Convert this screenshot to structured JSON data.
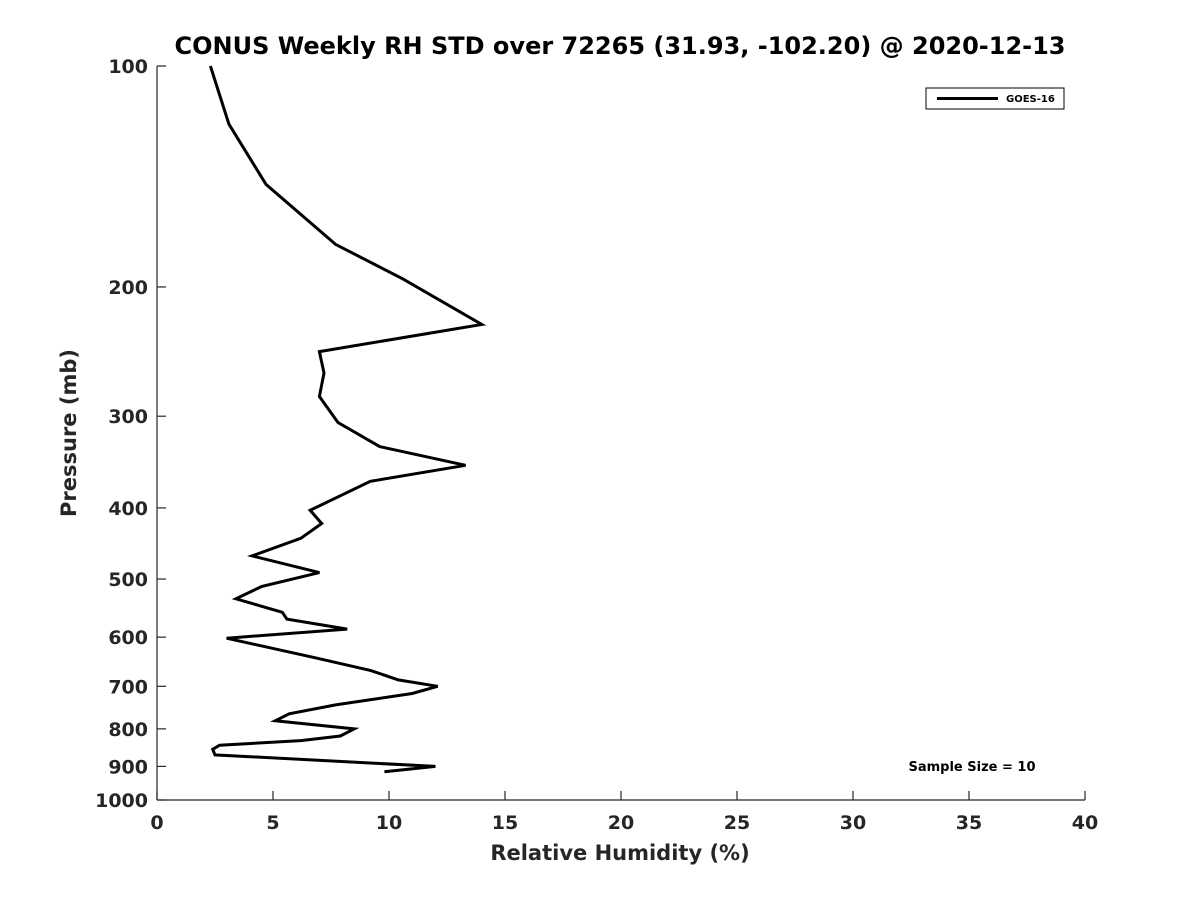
{
  "chart_data": {
    "type": "line",
    "title": "CONUS Weekly RH STD over 72265 (31.93, -102.20) @ 2020-12-13",
    "xlabel": "Relative Humidity (%)",
    "ylabel": "Pressure (mb)",
    "xlim": [
      0,
      40
    ],
    "ylim": [
      100,
      1000
    ],
    "y_scale": "log",
    "y_reversed": true,
    "x_ticks": [
      0,
      5,
      10,
      15,
      20,
      25,
      30,
      35,
      40
    ],
    "y_ticks": [
      100,
      200,
      300,
      400,
      500,
      600,
      700,
      800,
      900,
      1000
    ],
    "grid": false,
    "legend_position": "top-right",
    "annotation": "Sample Size = 10",
    "series": [
      {
        "name": "GOES-16",
        "color": "#000000",
        "points": [
          [
            2.3,
            100
          ],
          [
            3.1,
            120
          ],
          [
            4.7,
            145
          ],
          [
            7.7,
            175
          ],
          [
            10.6,
            195
          ],
          [
            14.0,
            225
          ],
          [
            7.0,
            245
          ],
          [
            7.2,
            262
          ],
          [
            7.0,
            282
          ],
          [
            7.8,
            306
          ],
          [
            9.6,
            330
          ],
          [
            13.3,
            350
          ],
          [
            9.2,
            368
          ],
          [
            6.6,
            403
          ],
          [
            7.1,
            420
          ],
          [
            6.2,
            440
          ],
          [
            4.1,
            465
          ],
          [
            7.0,
            490
          ],
          [
            4.5,
            512
          ],
          [
            3.4,
            532
          ],
          [
            5.4,
            555
          ],
          [
            5.6,
            567
          ],
          [
            8.2,
            585
          ],
          [
            3.0,
            602
          ],
          [
            6.8,
            640
          ],
          [
            9.2,
            666
          ],
          [
            10.4,
            686
          ],
          [
            12.1,
            700
          ],
          [
            11.0,
            716
          ],
          [
            7.7,
            742
          ],
          [
            5.7,
            763
          ],
          [
            5.1,
            780
          ],
          [
            8.5,
            800
          ],
          [
            7.9,
            818
          ],
          [
            6.2,
            830
          ],
          [
            2.7,
            842
          ],
          [
            2.4,
            853
          ],
          [
            2.5,
            868
          ],
          [
            12.0,
            900
          ],
          [
            9.8,
            915
          ]
        ]
      }
    ]
  }
}
